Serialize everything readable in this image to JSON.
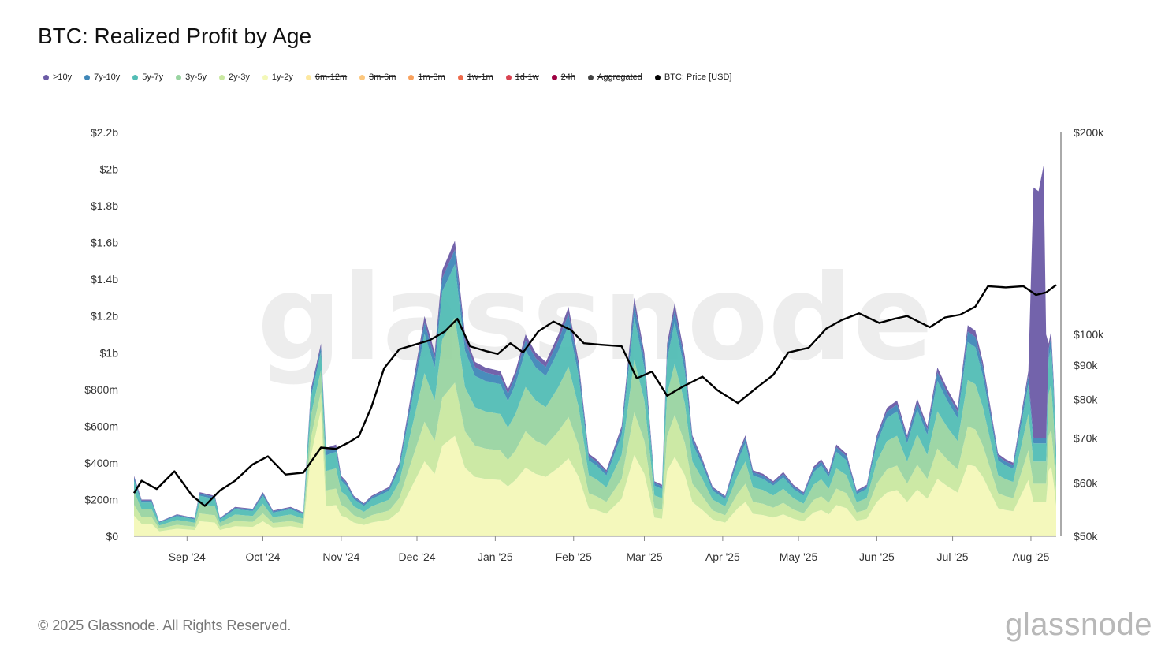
{
  "title": "BTC: Realized Profit by Age",
  "legend": [
    {
      "label": ">10y",
      "color": "#6b5ba6",
      "active": true
    },
    {
      "label": "7y-10y",
      "color": "#3f87b8",
      "active": true
    },
    {
      "label": "5y-7y",
      "color": "#52bdb5",
      "active": true
    },
    {
      "label": "3y-5y",
      "color": "#99d4a1",
      "active": true
    },
    {
      "label": "2y-3y",
      "color": "#c9e8a0",
      "active": true
    },
    {
      "label": "1y-2y",
      "color": "#f3f8b8",
      "active": true
    },
    {
      "label": "6m-12m",
      "color": "#fde8a0",
      "active": false
    },
    {
      "label": "3m-6m",
      "color": "#fcc77e",
      "active": false
    },
    {
      "label": "1m-3m",
      "color": "#f9a25e",
      "active": false
    },
    {
      "label": "1w-1m",
      "color": "#ee6b4b",
      "active": false
    },
    {
      "label": "1d-1w",
      "color": "#d94452",
      "active": false
    },
    {
      "label": "24h",
      "color": "#9e0142",
      "active": false
    },
    {
      "label": "Aggregated",
      "color": "#444444",
      "active": false
    },
    {
      "label": "BTC: Price [USD]",
      "color": "#000000",
      "active": true
    }
  ],
  "footer": "© 2025 Glassnode. All Rights Reserved.",
  "brand": "glassnode",
  "watermark": "glassnode",
  "chart_data": {
    "type": "area",
    "stacked": true,
    "x_start": "2024-08-11",
    "x_end": "2025-08-11",
    "x_ticks": [
      "Sep '24",
      "Oct '24",
      "Nov '24",
      "Dec '24",
      "Jan '25",
      "Feb '25",
      "Mar '25",
      "Apr '25",
      "May '25",
      "Jun '25",
      "Jul '25",
      "Aug '25"
    ],
    "y_left": {
      "ticks": [
        "$0",
        "$200m",
        "$400m",
        "$600m",
        "$800m",
        "$1b",
        "$1.2b",
        "$1.4b",
        "$1.6b",
        "$1.8b",
        "$2b",
        "$2.2b"
      ],
      "min": 0,
      "max": 2.2,
      "unit": "USD billions"
    },
    "y_right": {
      "ticks": [
        "$50k",
        "$60k",
        "$70k",
        "$80k",
        "$90k",
        "$100k",
        "$200k"
      ],
      "scale": "log",
      "min": 50000,
      "max": 200000
    },
    "stack_total_points": [
      [
        "2024-08-11",
        0.33
      ],
      [
        "2024-08-14",
        0.2
      ],
      [
        "2024-08-18",
        0.2
      ],
      [
        "2024-08-21",
        0.08
      ],
      [
        "2024-08-28",
        0.12
      ],
      [
        "2024-09-04",
        0.1
      ],
      [
        "2024-09-06",
        0.24
      ],
      [
        "2024-09-12",
        0.22
      ],
      [
        "2024-09-14",
        0.1
      ],
      [
        "2024-09-20",
        0.16
      ],
      [
        "2024-09-27",
        0.15
      ],
      [
        "2024-10-01",
        0.24
      ],
      [
        "2024-10-05",
        0.14
      ],
      [
        "2024-10-12",
        0.16
      ],
      [
        "2024-10-17",
        0.13
      ],
      [
        "2024-10-20",
        0.8
      ],
      [
        "2024-10-24",
        1.05
      ],
      [
        "2024-10-26",
        0.48
      ],
      [
        "2024-10-30",
        0.5
      ],
      [
        "2024-11-01",
        0.33
      ],
      [
        "2024-11-03",
        0.3
      ],
      [
        "2024-11-06",
        0.22
      ],
      [
        "2024-11-10",
        0.18
      ],
      [
        "2024-11-13",
        0.22
      ],
      [
        "2024-11-20",
        0.27
      ],
      [
        "2024-11-24",
        0.4
      ],
      [
        "2024-11-29",
        0.8
      ],
      [
        "2024-12-04",
        1.2
      ],
      [
        "2024-12-08",
        1.0
      ],
      [
        "2024-12-11",
        1.45
      ],
      [
        "2024-12-16",
        1.61
      ],
      [
        "2024-12-20",
        1.1
      ],
      [
        "2024-12-24",
        0.95
      ],
      [
        "2024-12-28",
        0.92
      ],
      [
        "2025-01-03",
        0.9
      ],
      [
        "2025-01-06",
        0.8
      ],
      [
        "2025-01-09",
        0.9
      ],
      [
        "2025-01-13",
        1.1
      ],
      [
        "2025-01-17",
        1.0
      ],
      [
        "2025-01-21",
        0.95
      ],
      [
        "2025-01-26",
        1.1
      ],
      [
        "2025-01-30",
        1.25
      ],
      [
        "2025-02-03",
        0.95
      ],
      [
        "2025-02-07",
        0.45
      ],
      [
        "2025-02-10",
        0.42
      ],
      [
        "2025-02-14",
        0.36
      ],
      [
        "2025-02-20",
        0.6
      ],
      [
        "2025-02-25",
        1.3
      ],
      [
        "2025-03-01",
        1.0
      ],
      [
        "2025-03-05",
        0.3
      ],
      [
        "2025-03-08",
        0.28
      ],
      [
        "2025-03-10",
        1.05
      ],
      [
        "2025-03-13",
        1.27
      ],
      [
        "2025-03-17",
        0.98
      ],
      [
        "2025-03-20",
        0.55
      ],
      [
        "2025-03-24",
        0.42
      ],
      [
        "2025-03-28",
        0.27
      ],
      [
        "2025-04-02",
        0.22
      ],
      [
        "2025-04-07",
        0.45
      ],
      [
        "2025-04-10",
        0.55
      ],
      [
        "2025-04-13",
        0.36
      ],
      [
        "2025-04-17",
        0.34
      ],
      [
        "2025-04-21",
        0.3
      ],
      [
        "2025-04-25",
        0.35
      ],
      [
        "2025-04-29",
        0.28
      ],
      [
        "2025-05-03",
        0.24
      ],
      [
        "2025-05-07",
        0.38
      ],
      [
        "2025-05-10",
        0.42
      ],
      [
        "2025-05-13",
        0.35
      ],
      [
        "2025-05-16",
        0.5
      ],
      [
        "2025-05-20",
        0.45
      ],
      [
        "2025-05-24",
        0.25
      ],
      [
        "2025-05-28",
        0.28
      ],
      [
        "2025-06-01",
        0.55
      ],
      [
        "2025-06-05",
        0.7
      ],
      [
        "2025-06-09",
        0.74
      ],
      [
        "2025-06-13",
        0.55
      ],
      [
        "2025-06-17",
        0.75
      ],
      [
        "2025-06-21",
        0.6
      ],
      [
        "2025-06-25",
        0.92
      ],
      [
        "2025-06-29",
        0.8
      ],
      [
        "2025-07-03",
        0.7
      ],
      [
        "2025-07-07",
        1.15
      ],
      [
        "2025-07-10",
        1.12
      ],
      [
        "2025-07-13",
        0.95
      ],
      [
        "2025-07-16",
        0.7
      ],
      [
        "2025-07-19",
        0.45
      ],
      [
        "2025-07-22",
        0.42
      ],
      [
        "2025-07-25",
        0.4
      ],
      [
        "2025-07-28",
        0.65
      ],
      [
        "2025-07-31",
        0.9
      ],
      [
        "2025-08-02",
        1.9
      ],
      [
        "2025-08-04",
        1.88
      ],
      [
        "2025-08-05",
        1.95
      ],
      [
        "2025-08-06",
        2.02
      ],
      [
        "2025-08-07",
        1.1
      ],
      [
        "2025-08-08",
        1.05
      ],
      [
        "2025-08-09",
        1.12
      ],
      [
        "2025-08-10",
        0.85
      ],
      [
        "2025-08-11",
        0.48
      ]
    ],
    "btc_price_points": [
      [
        "2024-08-11",
        58000
      ],
      [
        "2024-08-14",
        60500
      ],
      [
        "2024-08-20",
        58800
      ],
      [
        "2024-08-27",
        62500
      ],
      [
        "2024-09-03",
        57500
      ],
      [
        "2024-09-08",
        55500
      ],
      [
        "2024-09-14",
        58500
      ],
      [
        "2024-09-20",
        60500
      ],
      [
        "2024-09-27",
        64000
      ],
      [
        "2024-10-03",
        65800
      ],
      [
        "2024-10-10",
        61800
      ],
      [
        "2024-10-17",
        62200
      ],
      [
        "2024-10-24",
        67800
      ],
      [
        "2024-10-30",
        67500
      ],
      [
        "2024-11-04",
        69000
      ],
      [
        "2024-11-08",
        70500
      ],
      [
        "2024-11-13",
        78000
      ],
      [
        "2024-11-18",
        89000
      ],
      [
        "2024-11-24",
        95000
      ],
      [
        "2024-11-30",
        96500
      ],
      [
        "2024-12-06",
        98000
      ],
      [
        "2024-12-12",
        101000
      ],
      [
        "2024-12-17",
        105500
      ],
      [
        "2024-12-22",
        96000
      ],
      [
        "2024-12-28",
        94500
      ],
      [
        "2025-01-02",
        93500
      ],
      [
        "2025-01-07",
        97000
      ],
      [
        "2025-01-12",
        94000
      ],
      [
        "2025-01-18",
        101000
      ],
      [
        "2025-01-24",
        104500
      ],
      [
        "2025-01-31",
        101500
      ],
      [
        "2025-02-05",
        97000
      ],
      [
        "2025-02-12",
        96500
      ],
      [
        "2025-02-20",
        96000
      ],
      [
        "2025-02-26",
        86000
      ],
      [
        "2025-03-04",
        88000
      ],
      [
        "2025-03-10",
        81000
      ],
      [
        "2025-03-16",
        83500
      ],
      [
        "2025-03-24",
        86500
      ],
      [
        "2025-03-30",
        82500
      ],
      [
        "2025-04-07",
        79000
      ],
      [
        "2025-04-14",
        83000
      ],
      [
        "2025-04-21",
        87000
      ],
      [
        "2025-04-27",
        94000
      ],
      [
        "2025-05-05",
        95500
      ],
      [
        "2025-05-12",
        102000
      ],
      [
        "2025-05-18",
        105000
      ],
      [
        "2025-05-25",
        107500
      ],
      [
        "2025-06-02",
        104000
      ],
      [
        "2025-06-08",
        105500
      ],
      [
        "2025-06-13",
        106500
      ],
      [
        "2025-06-22",
        102500
      ],
      [
        "2025-06-28",
        106000
      ],
      [
        "2025-07-04",
        107000
      ],
      [
        "2025-07-10",
        110000
      ],
      [
        "2025-07-15",
        118000
      ],
      [
        "2025-07-22",
        117500
      ],
      [
        "2025-07-29",
        118000
      ],
      [
        "2025-08-03",
        114500
      ],
      [
        "2025-08-07",
        115500
      ],
      [
        "2025-08-11",
        118500
      ]
    ],
    "stack_shares": [
      {
        "name": "1y-2y",
        "share": 0.34
      },
      {
        "name": "2y-3y",
        "share": 0.18
      },
      {
        "name": "3y-5y",
        "share": 0.22
      },
      {
        "name": "5y-7y",
        "share": 0.18
      },
      {
        "name": "7y-10y",
        "share": 0.05
      },
      {
        "name": ">10y",
        "share": 0.03
      }
    ],
    "spike_overrides": [
      {
        "date_range": [
          "2024-10-18",
          "2024-10-26"
        ],
        "dominant": "1y-2y"
      },
      {
        "date_range": [
          "2025-08-01",
          "2025-08-07"
        ],
        "dominant": ">10y"
      }
    ]
  }
}
